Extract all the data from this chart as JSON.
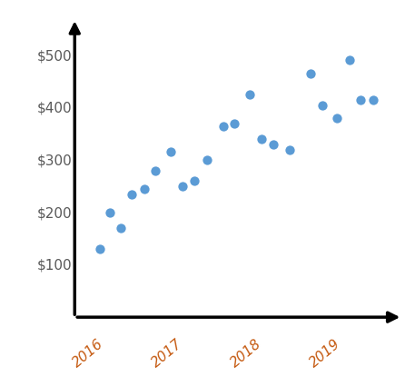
{
  "x": [
    2015.92,
    2016.05,
    2016.18,
    2016.32,
    2016.48,
    2016.62,
    2016.82,
    2016.97,
    2017.12,
    2017.27,
    2017.48,
    2017.62,
    2017.82,
    2017.97,
    2018.12,
    2018.32,
    2018.58,
    2018.73,
    2018.92,
    2019.08,
    2019.22,
    2019.38
  ],
  "y": [
    130,
    200,
    170,
    235,
    245,
    280,
    315,
    250,
    260,
    300,
    365,
    370,
    425,
    340,
    330,
    320,
    465,
    405,
    380,
    490,
    415,
    415
  ],
  "dot_color": "#5b9bd5",
  "dot_size": 55,
  "background_color": "#ffffff",
  "ytick_labels": [
    "$100",
    "$200",
    "$300",
    "$400",
    "$500"
  ],
  "ytick_values": [
    100,
    200,
    300,
    400,
    500
  ],
  "xtick_labels": [
    "2016",
    "2017",
    "2018",
    "2019"
  ],
  "xtick_values": [
    2016,
    2017,
    2018,
    2019
  ],
  "xtick_color": "#c55a11",
  "ytick_color": "#595959",
  "xlim": [
    2015.6,
    2019.75
  ],
  "ylim": [
    0,
    570
  ],
  "arrow_color": "#000000",
  "spine_lw": 2.5
}
